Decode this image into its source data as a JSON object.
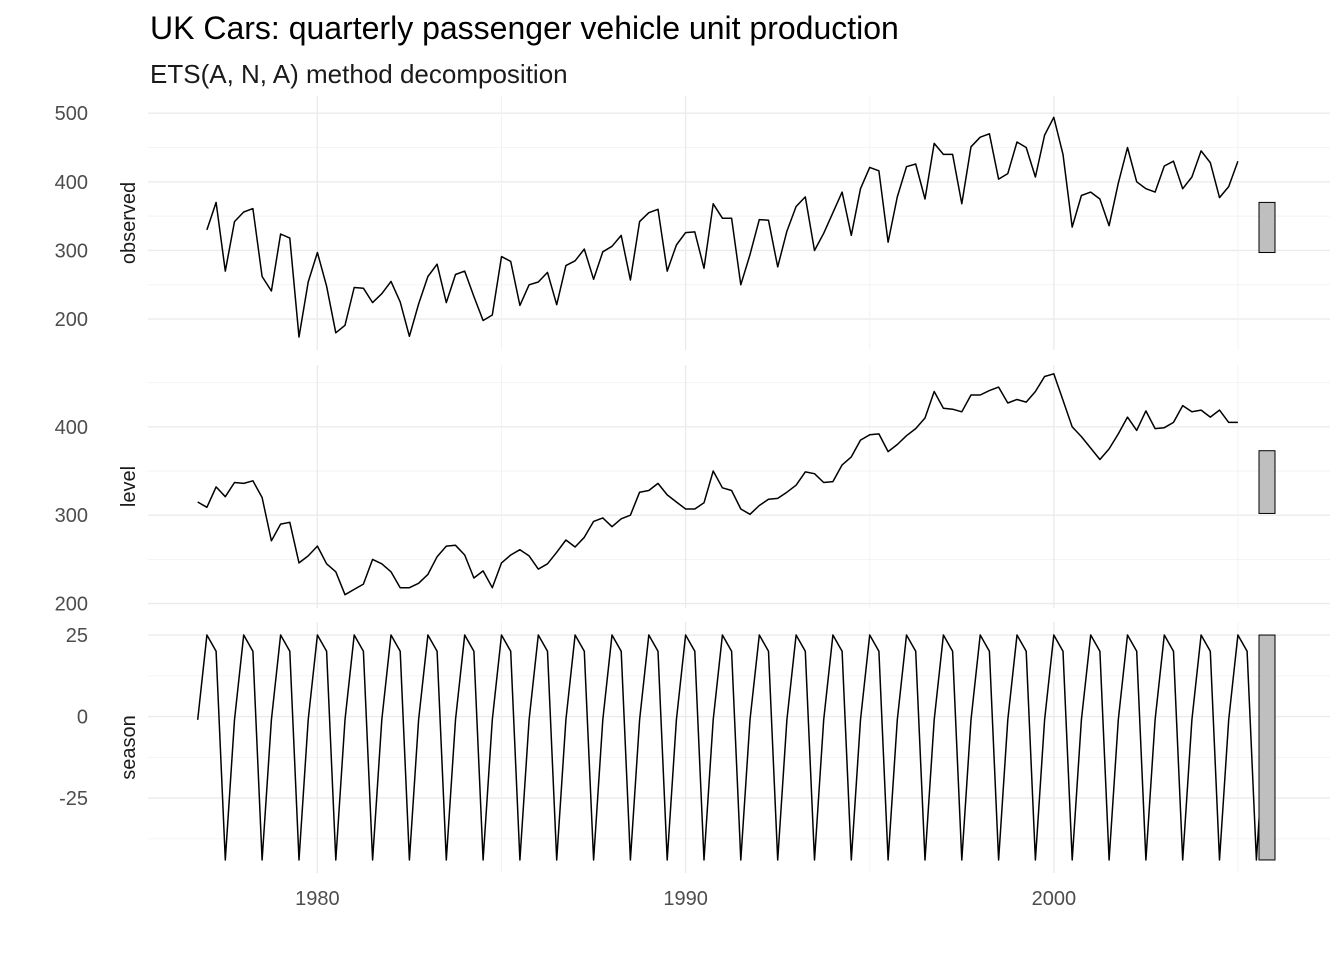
{
  "title": "UK Cars: quarterly passenger vehicle unit production",
  "subtitle": "ETS(A, N, A) method decomposition",
  "chart_data": {
    "type": "line",
    "title": "UK Cars: quarterly passenger vehicle unit production",
    "subtitle": "ETS(A, N, A) method decomposition",
    "xlabel": "",
    "x_ticks": [
      1980,
      1990,
      2000
    ],
    "x_range": [
      1975.4,
      2007.5
    ],
    "grid": true,
    "series_color": "#000000",
    "range_bar_color": "#bfbfbf",
    "panels": [
      {
        "name": "observed",
        "x_start": 1977.0,
        "x_step": 0.25,
        "ylim": [
          155,
          525
        ],
        "y_ticks": [
          200,
          300,
          400,
          500
        ],
        "range_bar": [
          297,
          370
        ],
        "values": [
          330,
          370,
          270,
          342,
          356,
          361,
          262,
          241,
          324,
          318,
          174,
          254,
          297,
          248,
          180,
          191,
          246,
          245,
          224,
          237,
          255,
          225,
          175,
          222,
          262,
          280,
          224,
          265,
          270,
          233,
          198,
          206,
          291,
          284,
          220,
          250,
          254,
          268,
          221,
          278,
          285,
          302,
          258,
          298,
          306,
          322,
          257,
          342,
          355,
          360,
          270,
          308,
          326,
          327,
          274,
          368,
          347,
          347,
          250,
          294,
          345,
          344,
          276,
          328,
          364,
          378,
          300,
          325,
          355,
          385,
          322,
          390,
          421,
          416,
          312,
          378,
          422,
          426,
          375,
          456,
          440,
          440,
          368,
          451,
          465,
          470,
          404,
          412,
          458,
          450,
          407,
          468,
          494,
          440,
          334,
          380,
          385,
          375,
          336,
          398,
          450,
          400,
          390,
          385,
          423,
          430,
          390,
          407,
          445,
          428,
          377,
          393,
          430
        ]
      },
      {
        "name": "level",
        "x_start": 1976.75,
        "x_step": 0.25,
        "ylim": [
          195,
          470
        ],
        "y_ticks": [
          200,
          300,
          400
        ],
        "range_bar": [
          302,
          373
        ],
        "values": [
          315,
          309,
          332,
          321,
          337,
          336,
          339,
          320,
          271,
          290,
          292,
          246,
          254,
          265,
          245,
          236,
          210,
          216,
          222,
          250,
          245,
          236,
          218,
          218,
          223,
          233,
          253,
          265,
          266,
          255,
          229,
          237,
          218,
          246,
          255,
          261,
          254,
          239,
          245,
          258,
          272,
          264,
          275,
          293,
          297,
          287,
          296,
          300,
          326,
          328,
          336,
          323,
          315,
          307,
          307,
          314,
          350,
          331,
          328,
          307,
          301,
          311,
          318,
          319,
          326,
          334,
          349,
          347,
          337,
          338,
          357,
          366,
          385,
          391,
          392,
          372,
          380,
          390,
          398,
          410,
          440,
          421,
          420,
          417,
          436,
          436,
          441,
          445,
          427,
          431,
          428,
          440,
          457,
          460,
          430,
          400,
          389,
          376,
          363,
          375,
          392,
          411,
          396,
          418,
          398,
          399,
          405,
          424,
          417,
          419,
          411,
          419,
          405,
          405
        ]
      },
      {
        "name": "season",
        "x_start": 1976.75,
        "x_step": 0.25,
        "ylim": [
          -48,
          29
        ],
        "y_ticks": [
          -25,
          0,
          25
        ],
        "range_bar": [
          -44,
          25
        ],
        "pattern": [
          -1,
          25,
          20,
          -44
        ],
        "values": [
          -1,
          25,
          20,
          -44,
          -1,
          25,
          20,
          -44,
          -1,
          25,
          20,
          -44,
          -1,
          25,
          20,
          -44,
          -1,
          25,
          20,
          -44,
          -1,
          25,
          20,
          -44,
          -1,
          25,
          20,
          -44,
          -1,
          25,
          20,
          -44,
          -1,
          25,
          20,
          -44,
          -1,
          25,
          20,
          -44,
          -1,
          25,
          20,
          -44,
          -1,
          25,
          20,
          -44,
          -1,
          25,
          20,
          -44,
          -1,
          25,
          20,
          -44,
          -1,
          25,
          20,
          -44,
          -1,
          25,
          20,
          -44,
          -1,
          25,
          20,
          -44,
          -1,
          25,
          20,
          -44,
          -1,
          25,
          20,
          -44,
          -1,
          25,
          20,
          -44,
          -1,
          25,
          20,
          -44,
          -1,
          25,
          20,
          -44,
          -1,
          25,
          20,
          -44,
          -1,
          25,
          20,
          -44,
          -1,
          25,
          20,
          -44,
          -1,
          25,
          20,
          -44,
          -1,
          25,
          20,
          -44,
          -1,
          25,
          20,
          -44,
          -1,
          25,
          20,
          -44,
          -1,
          25
        ]
      }
    ]
  }
}
